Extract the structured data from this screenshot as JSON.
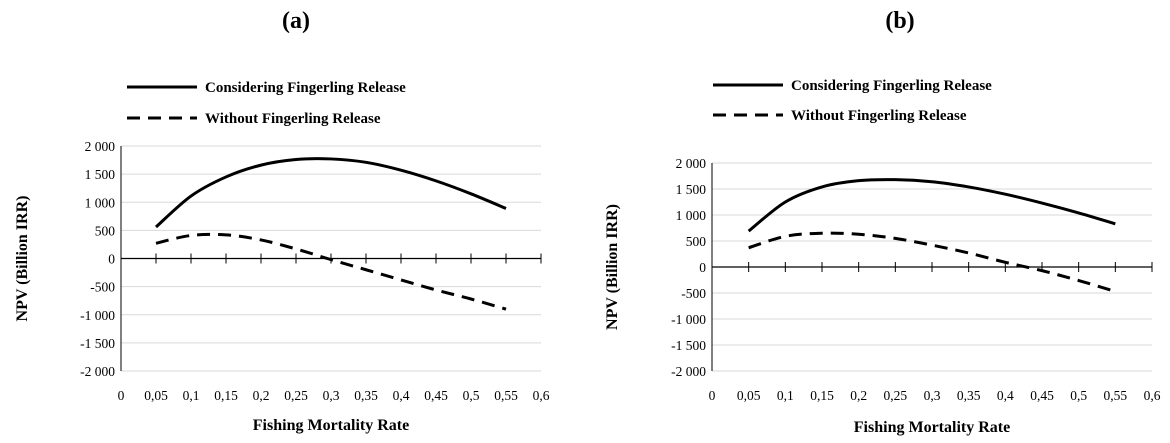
{
  "chart_data": [
    {
      "panel_label": "(a)",
      "type": "line",
      "xlabel": "Fishing Mortality Rate",
      "ylabel": "NPV (Billion IRR)",
      "xlim": [
        0,
        0.6
      ],
      "ylim": [
        -2000,
        2000
      ],
      "x_ticks": [
        "0",
        "0,05",
        "0,1",
        "0,15",
        "0,2",
        "0,25",
        "0,3",
        "0,35",
        "0,4",
        "0,45",
        "0,5",
        "0,55",
        "0,6"
      ],
      "y_ticks": [
        "2 000",
        "1 500",
        "1 000",
        "500",
        "0",
        "-500",
        "-1 000",
        "-1 500",
        "-2 000"
      ],
      "grid": true,
      "legend_position": "top-left",
      "series": [
        {
          "name": "Considering Fingerling Release",
          "style": "solid",
          "color": "#000000",
          "x": [
            0.05,
            0.1,
            0.15,
            0.2,
            0.25,
            0.3,
            0.35,
            0.4,
            0.45,
            0.5,
            0.55
          ],
          "values": [
            560,
            1110,
            1450,
            1660,
            1760,
            1770,
            1710,
            1570,
            1380,
            1150,
            890
          ]
        },
        {
          "name": "Without Fingerling Release",
          "style": "dashed",
          "color": "#000000",
          "x": [
            0.05,
            0.1,
            0.15,
            0.2,
            0.25,
            0.3,
            0.35,
            0.4,
            0.45,
            0.5,
            0.55
          ],
          "values": [
            270,
            410,
            420,
            330,
            170,
            -20,
            -200,
            -380,
            -560,
            -720,
            -900
          ]
        }
      ]
    },
    {
      "panel_label": "(b)",
      "type": "line",
      "xlabel": "Fishing Mortality Rate",
      "ylabel": "NPV (Billion IRR)",
      "xlim": [
        0,
        0.6
      ],
      "ylim": [
        -2000,
        2000
      ],
      "x_ticks": [
        "0",
        "0,05",
        "0,1",
        "0,15",
        "0,2",
        "0,25",
        "0,3",
        "0,35",
        "0,4",
        "0,45",
        "0,5",
        "0,55",
        "0,6"
      ],
      "y_ticks": [
        "2 000",
        "1 500",
        "1 000",
        "500",
        "0",
        "-500",
        "-1 000",
        "-1 500",
        "-2 000"
      ],
      "grid": true,
      "legend_position": "top-left",
      "series": [
        {
          "name": "Considering Fingerling Release",
          "style": "solid",
          "color": "#000000",
          "x": [
            0.05,
            0.1,
            0.15,
            0.2,
            0.25,
            0.3,
            0.35,
            0.4,
            0.45,
            0.5,
            0.55
          ],
          "values": [
            690,
            1250,
            1540,
            1660,
            1680,
            1640,
            1540,
            1400,
            1230,
            1040,
            830
          ]
        },
        {
          "name": "Without Fingerling Release",
          "style": "dashed",
          "color": "#000000",
          "x": [
            0.05,
            0.1,
            0.15,
            0.2,
            0.25,
            0.3,
            0.35,
            0.4,
            0.45,
            0.5,
            0.55
          ],
          "values": [
            370,
            590,
            650,
            630,
            550,
            420,
            270,
            90,
            -70,
            -260,
            -470
          ]
        }
      ]
    }
  ]
}
